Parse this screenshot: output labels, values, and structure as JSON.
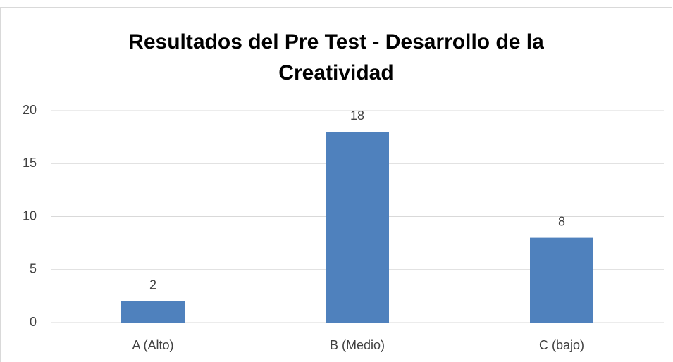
{
  "chart_data": {
    "type": "bar",
    "title": "Resultados del Pre Test - Desarrollo de la Creatividad",
    "categories": [
      "A (Alto)",
      "B (Medio)",
      "C (bajo)"
    ],
    "values": [
      2,
      18,
      8
    ],
    "color": "#4f81bd",
    "ylim": [
      0,
      20
    ],
    "yticks": [
      0,
      5,
      10,
      15,
      20
    ],
    "grid": true
  }
}
